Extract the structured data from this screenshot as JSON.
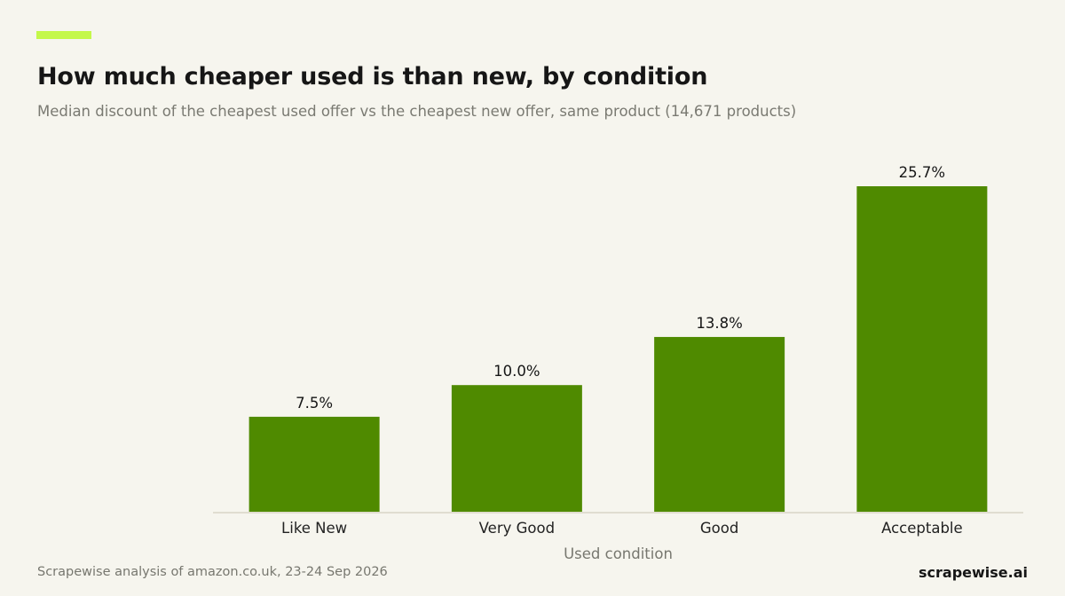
{
  "header": {
    "title": "How much cheaper used is than new, by condition",
    "subtitle": "Median discount of the cheapest used offer vs the cheapest new offer, same product (14,671 products)"
  },
  "footer": {
    "source": "Scrapewise analysis of amazon.co.uk, 23-24 Sep 2026",
    "brand": "scrapewise.ai"
  },
  "colors": {
    "accent": "#c4f84a",
    "bar": "#4f8a00",
    "axis": "#e0ddd0",
    "text_dark": "#161616",
    "text_muted": "#77776f"
  },
  "chart_data": {
    "type": "bar",
    "title": "How much cheaper used is than new, by condition",
    "subtitle": "Median discount of the cheapest used offer vs the cheapest new offer, same product (14,671 products)",
    "xlabel": "Used condition",
    "ylabel": "",
    "categories": [
      "Like New",
      "Very Good",
      "Good",
      "Acceptable"
    ],
    "values": [
      7.5,
      10.0,
      13.8,
      25.7
    ],
    "labels": [
      "7.5%",
      "10.0%",
      "13.8%",
      "25.7%"
    ],
    "ylim": [
      0,
      25.7
    ],
    "grid": false,
    "legend": "none"
  }
}
